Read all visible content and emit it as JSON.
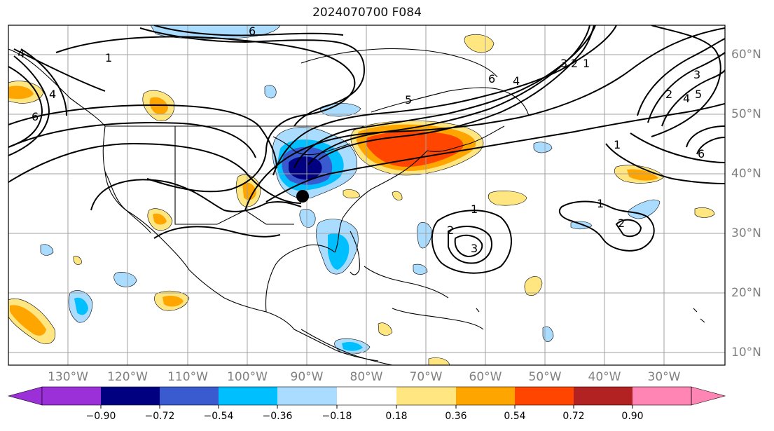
{
  "title": "2024070700 F084",
  "longitude_labels": [
    "130°W",
    "120°W",
    "110°W",
    "100°W",
    "90°W",
    "80°W",
    "70°W",
    "60°W",
    "50°W",
    "40°W",
    "30°W"
  ],
  "latitude_labels": [
    "60°N",
    "50°N",
    "40°N",
    "30°N",
    "20°N",
    "10°N"
  ],
  "colorbar": {
    "ticks": [
      "−0.90",
      "−0.72",
      "−0.54",
      "−0.36",
      "−0.18",
      "0.18",
      "0.36",
      "0.54",
      "0.72",
      "0.90"
    ],
    "colors": [
      "#9b30d9",
      "#000080",
      "#3a5bd0",
      "#00bfff",
      "#aadcff",
      "#ffffff",
      "#ffe680",
      "#ffa500",
      "#ff4500",
      "#b22222",
      "#ff85b4"
    ]
  },
  "contour_labels": [
    "6",
    "6",
    "4",
    "1",
    "4",
    "5",
    "6",
    "4",
    "3",
    "2",
    "1",
    "2",
    "3",
    "4",
    "5",
    "1",
    "6",
    "1",
    "2",
    "3",
    "1",
    "2"
  ],
  "marker": "black-dot"
}
